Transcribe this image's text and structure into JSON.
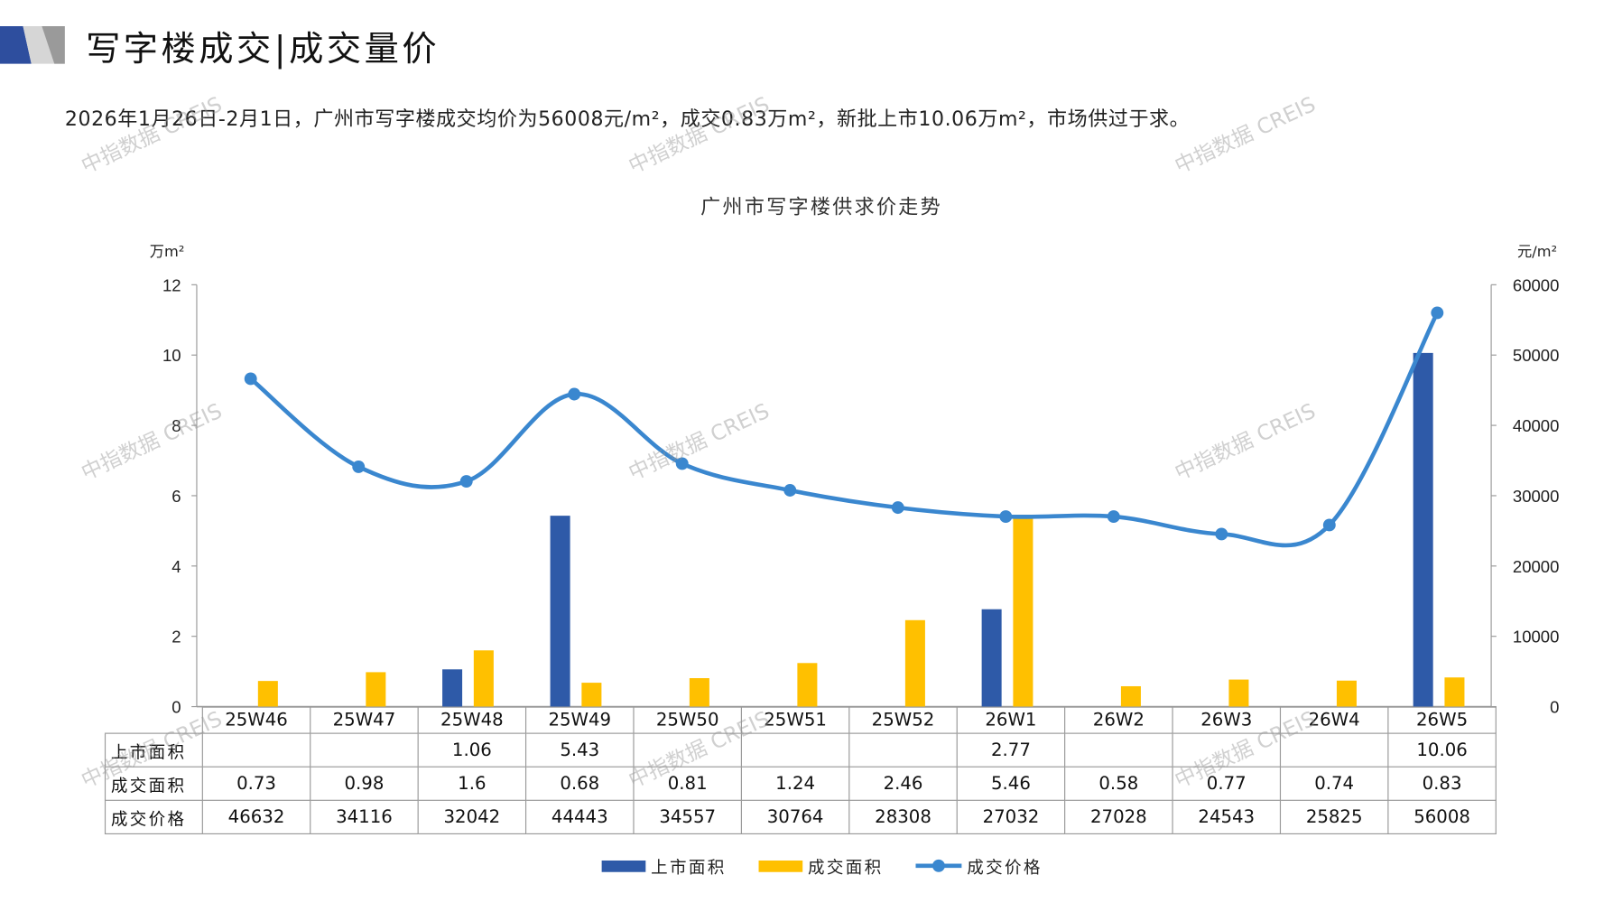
{
  "header": {
    "title": "写字楼成交|成交量价",
    "subtitle": "2026年1月26日-2月1日，广州市写字楼成交均价为56008元/m²，成交0.83万m²，新批上市10.06万m²，市场供过于求。"
  },
  "watermark": "中指数据 CREIS",
  "colors": {
    "supply": "#2E5AA8",
    "deal": "#FFC000",
    "price": "#3A87CF"
  },
  "chart_data": {
    "type": "bar+line",
    "title": "广州市写字楼供求价走势",
    "left_axis_unit": "万m²",
    "right_axis_unit": "元/m²",
    "left_ylim": [
      0,
      12
    ],
    "left_ticks": [
      "0",
      "2",
      "4",
      "6",
      "8",
      "10",
      "12"
    ],
    "right_ylim": [
      0,
      60000
    ],
    "right_ticks": [
      "0",
      "10000",
      "20000",
      "30000",
      "40000",
      "50000",
      "60000"
    ],
    "categories": [
      "25W46",
      "25W47",
      "25W48",
      "25W49",
      "25W50",
      "25W51",
      "25W52",
      "26W1",
      "26W2",
      "26W3",
      "26W4",
      "26W5"
    ],
    "series": [
      {
        "name": "上市面积",
        "type": "bar",
        "axis": "left",
        "values": [
          null,
          null,
          1.06,
          5.43,
          null,
          null,
          null,
          2.77,
          null,
          null,
          null,
          10.06
        ],
        "labels": [
          "",
          "",
          "1.06",
          "5.43",
          "",
          "",
          "",
          "2.77",
          "",
          "",
          "",
          "10.06"
        ]
      },
      {
        "name": "成交面积",
        "type": "bar",
        "axis": "left",
        "values": [
          0.73,
          0.98,
          1.6,
          0.68,
          0.81,
          1.24,
          2.46,
          5.46,
          0.58,
          0.77,
          0.74,
          0.83
        ],
        "labels": [
          "0.73",
          "0.98",
          "1.6",
          "0.68",
          "0.81",
          "1.24",
          "2.46",
          "5.46",
          "0.58",
          "0.77",
          "0.74",
          "0.83"
        ]
      },
      {
        "name": "成交价格",
        "type": "line",
        "axis": "right",
        "values": [
          46632,
          34116,
          32042,
          44443,
          34557,
          30764,
          28308,
          27032,
          27028,
          24543,
          25825,
          56008
        ],
        "labels": [
          "46632",
          "34116",
          "32042",
          "44443",
          "34557",
          "30764",
          "28308",
          "27032",
          "27028",
          "24543",
          "25825",
          "56008"
        ]
      }
    ],
    "legend": "bottom-center"
  }
}
